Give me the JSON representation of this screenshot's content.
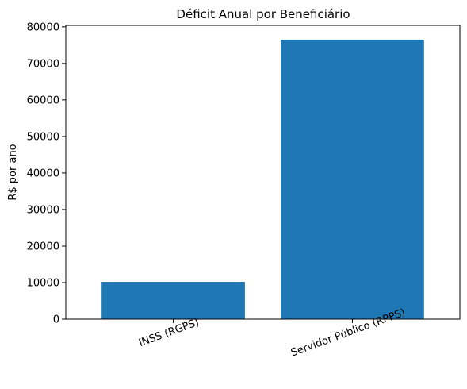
{
  "chart_data": {
    "type": "bar",
    "title": "Déficit Anual por Beneficiário",
    "xlabel": "",
    "ylabel": "R$ por ano",
    "categories": [
      "INSS (RGPS)",
      "Servidor Público (RPPS)"
    ],
    "values": [
      10200,
      76500
    ],
    "ylim": [
      0,
      80400
    ],
    "yticks": [
      0,
      10000,
      20000,
      30000,
      40000,
      50000,
      60000,
      70000,
      80000
    ],
    "x_tick_rotation_deg": 20,
    "bar_color": "#1f77b4",
    "grid": false,
    "legend": "none"
  }
}
